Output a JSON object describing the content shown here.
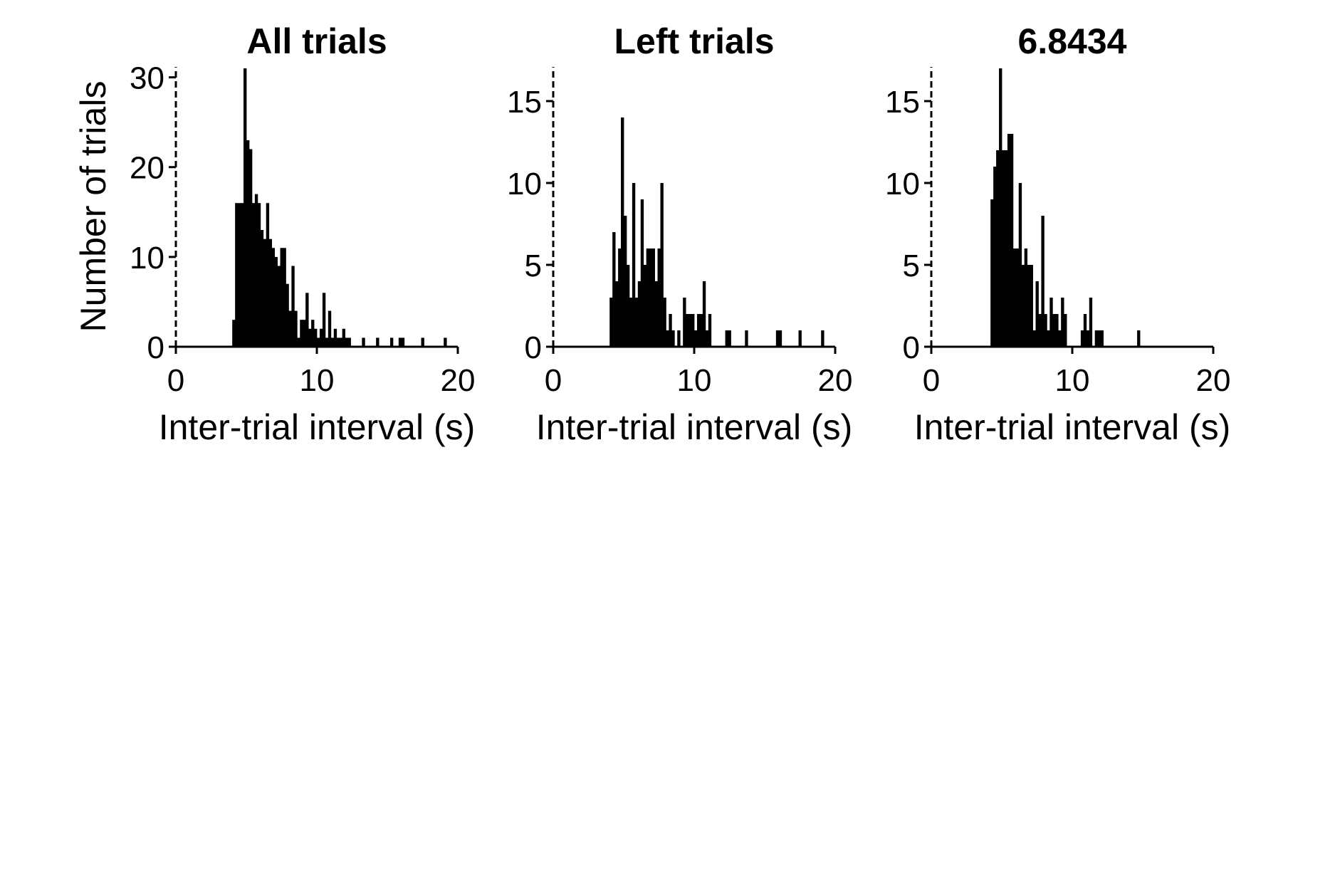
{
  "figure": {
    "ylabel": "Number of trials",
    "xlabel": "Inter-trial interval (s)",
    "colors": {
      "bars": "#000000",
      "axes": "#000000",
      "background": "#ffffff"
    }
  },
  "chart_data": [
    {
      "type": "bar",
      "title": "All trials",
      "xlabel": "Inter-trial interval (s)",
      "ylabel": "Number of trials",
      "xlim": [
        0,
        20
      ],
      "ylim": [
        0,
        31
      ],
      "xticks": [
        0,
        10,
        20
      ],
      "yticks": [
        0,
        10,
        20,
        30
      ],
      "bin_width": 0.2,
      "grid": false,
      "dashed_line_x": 0,
      "bars": [
        {
          "x": 4.0,
          "y": 3
        },
        {
          "x": 4.2,
          "y": 16
        },
        {
          "x": 4.4,
          "y": 16
        },
        {
          "x": 4.6,
          "y": 16
        },
        {
          "x": 4.8,
          "y": 31
        },
        {
          "x": 5.0,
          "y": 23
        },
        {
          "x": 5.2,
          "y": 22
        },
        {
          "x": 5.4,
          "y": 16
        },
        {
          "x": 5.6,
          "y": 17
        },
        {
          "x": 5.8,
          "y": 16
        },
        {
          "x": 6.0,
          "y": 13
        },
        {
          "x": 6.2,
          "y": 12
        },
        {
          "x": 6.4,
          "y": 16
        },
        {
          "x": 6.6,
          "y": 12
        },
        {
          "x": 6.8,
          "y": 11
        },
        {
          "x": 7.0,
          "y": 10
        },
        {
          "x": 7.2,
          "y": 9
        },
        {
          "x": 7.4,
          "y": 11
        },
        {
          "x": 7.6,
          "y": 11
        },
        {
          "x": 7.8,
          "y": 7
        },
        {
          "x": 8.0,
          "y": 4
        },
        {
          "x": 8.2,
          "y": 9
        },
        {
          "x": 8.4,
          "y": 4
        },
        {
          "x": 8.6,
          "y": 1
        },
        {
          "x": 8.8,
          "y": 3
        },
        {
          "x": 9.0,
          "y": 3
        },
        {
          "x": 9.2,
          "y": 6
        },
        {
          "x": 9.4,
          "y": 2
        },
        {
          "x": 9.6,
          "y": 3
        },
        {
          "x": 9.8,
          "y": 2
        },
        {
          "x": 10.0,
          "y": 1
        },
        {
          "x": 10.2,
          "y": 2
        },
        {
          "x": 10.4,
          "y": 6
        },
        {
          "x": 10.6,
          "y": 1
        },
        {
          "x": 10.8,
          "y": 4
        },
        {
          "x": 11.0,
          "y": 1
        },
        {
          "x": 11.2,
          "y": 2
        },
        {
          "x": 11.4,
          "y": 1
        },
        {
          "x": 11.6,
          "y": 1
        },
        {
          "x": 11.8,
          "y": 2
        },
        {
          "x": 12.0,
          "y": 1
        },
        {
          "x": 12.2,
          "y": 1
        },
        {
          "x": 13.2,
          "y": 1
        },
        {
          "x": 14.2,
          "y": 1
        },
        {
          "x": 15.2,
          "y": 1
        },
        {
          "x": 15.8,
          "y": 1
        },
        {
          "x": 16.0,
          "y": 1
        },
        {
          "x": 17.4,
          "y": 1
        },
        {
          "x": 19.0,
          "y": 1
        }
      ]
    },
    {
      "type": "bar",
      "title": "Left trials",
      "xlabel": "Inter-trial interval (s)",
      "ylabel": "",
      "xlim": [
        0,
        20
      ],
      "ylim": [
        0,
        17
      ],
      "xticks": [
        0,
        10,
        20
      ],
      "yticks": [
        0,
        5,
        10,
        15
      ],
      "bin_width": 0.2,
      "grid": false,
      "dashed_line_x": 0,
      "bars": [
        {
          "x": 4.0,
          "y": 3
        },
        {
          "x": 4.2,
          "y": 7
        },
        {
          "x": 4.4,
          "y": 4
        },
        {
          "x": 4.6,
          "y": 6
        },
        {
          "x": 4.8,
          "y": 14
        },
        {
          "x": 5.0,
          "y": 8
        },
        {
          "x": 5.2,
          "y": 5
        },
        {
          "x": 5.4,
          "y": 3
        },
        {
          "x": 5.6,
          "y": 10
        },
        {
          "x": 5.8,
          "y": 3
        },
        {
          "x": 6.0,
          "y": 4
        },
        {
          "x": 6.2,
          "y": 9
        },
        {
          "x": 6.4,
          "y": 5
        },
        {
          "x": 6.6,
          "y": 6
        },
        {
          "x": 6.8,
          "y": 6
        },
        {
          "x": 7.0,
          "y": 6
        },
        {
          "x": 7.2,
          "y": 4
        },
        {
          "x": 7.4,
          "y": 6
        },
        {
          "x": 7.6,
          "y": 10
        },
        {
          "x": 7.8,
          "y": 3
        },
        {
          "x": 8.0,
          "y": 1
        },
        {
          "x": 8.2,
          "y": 2
        },
        {
          "x": 8.4,
          "y": 1
        },
        {
          "x": 8.8,
          "y": 1
        },
        {
          "x": 9.2,
          "y": 3
        },
        {
          "x": 9.4,
          "y": 2
        },
        {
          "x": 9.6,
          "y": 2
        },
        {
          "x": 9.8,
          "y": 2
        },
        {
          "x": 10.0,
          "y": 1
        },
        {
          "x": 10.2,
          "y": 2
        },
        {
          "x": 10.4,
          "y": 2
        },
        {
          "x": 10.6,
          "y": 4
        },
        {
          "x": 10.8,
          "y": 1
        },
        {
          "x": 11.0,
          "y": 2
        },
        {
          "x": 12.2,
          "y": 1
        },
        {
          "x": 12.4,
          "y": 1
        },
        {
          "x": 13.6,
          "y": 1
        },
        {
          "x": 15.8,
          "y": 1
        },
        {
          "x": 16.0,
          "y": 1
        },
        {
          "x": 17.4,
          "y": 1
        },
        {
          "x": 19.0,
          "y": 1
        }
      ]
    },
    {
      "type": "bar",
      "title": "6.8434",
      "xlabel": "Inter-trial interval (s)",
      "ylabel": "",
      "xlim": [
        0,
        20
      ],
      "ylim": [
        0,
        17
      ],
      "xticks": [
        0,
        10,
        20
      ],
      "yticks": [
        0,
        5,
        10,
        15
      ],
      "bin_width": 0.2,
      "grid": false,
      "dashed_line_x": 0,
      "bars": [
        {
          "x": 4.2,
          "y": 9
        },
        {
          "x": 4.4,
          "y": 11
        },
        {
          "x": 4.6,
          "y": 12
        },
        {
          "x": 4.8,
          "y": 17
        },
        {
          "x": 5.0,
          "y": 12
        },
        {
          "x": 5.2,
          "y": 12
        },
        {
          "x": 5.4,
          "y": 13
        },
        {
          "x": 5.6,
          "y": 13
        },
        {
          "x": 5.8,
          "y": 6
        },
        {
          "x": 6.0,
          "y": 6
        },
        {
          "x": 6.2,
          "y": 10
        },
        {
          "x": 6.4,
          "y": 5
        },
        {
          "x": 6.6,
          "y": 6
        },
        {
          "x": 6.8,
          "y": 5
        },
        {
          "x": 7.0,
          "y": 5
        },
        {
          "x": 7.2,
          "y": 1
        },
        {
          "x": 7.4,
          "y": 4
        },
        {
          "x": 7.6,
          "y": 2
        },
        {
          "x": 7.8,
          "y": 8
        },
        {
          "x": 8.0,
          "y": 2
        },
        {
          "x": 8.2,
          "y": 1
        },
        {
          "x": 8.4,
          "y": 3
        },
        {
          "x": 8.6,
          "y": 2
        },
        {
          "x": 8.8,
          "y": 2
        },
        {
          "x": 9.0,
          "y": 1
        },
        {
          "x": 9.2,
          "y": 3
        },
        {
          "x": 9.4,
          "y": 2
        },
        {
          "x": 10.6,
          "y": 1
        },
        {
          "x": 10.8,
          "y": 2
        },
        {
          "x": 11.0,
          "y": 1
        },
        {
          "x": 11.2,
          "y": 3
        },
        {
          "x": 11.6,
          "y": 1
        },
        {
          "x": 11.8,
          "y": 1
        },
        {
          "x": 12.0,
          "y": 1
        },
        {
          "x": 14.6,
          "y": 1
        }
      ]
    }
  ]
}
